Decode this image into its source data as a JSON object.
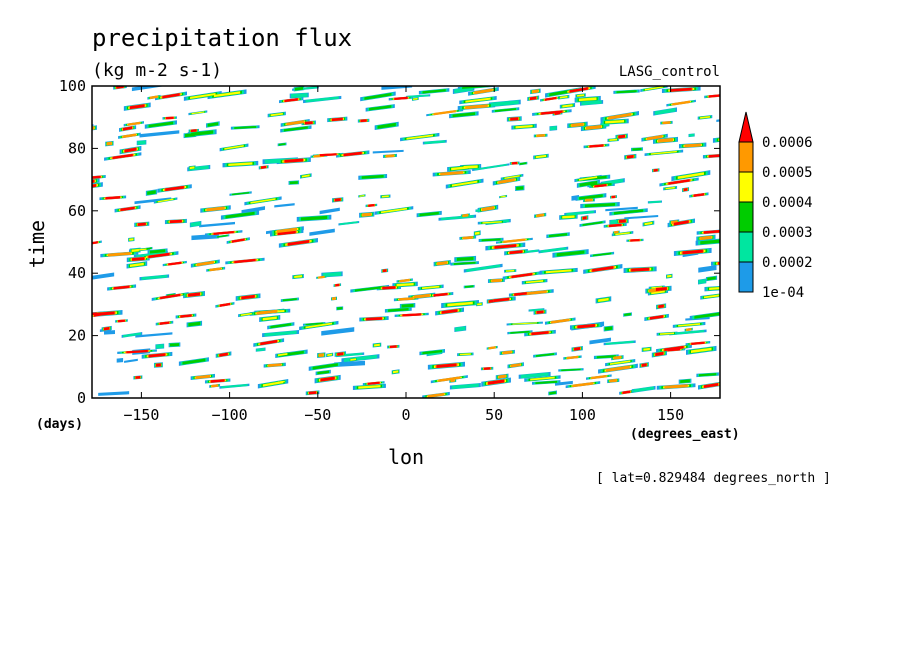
{
  "chart_data": {
    "type": "heatmap",
    "title": "precipitation flux",
    "units": "(kg m-2 s-1)",
    "experiment": "LASG_control",
    "xlabel": "lon",
    "ylabel": "time",
    "x_unit": "(degrees_east)",
    "y_unit": "(days)",
    "xlim": [
      -178,
      178
    ],
    "ylim": [
      0,
      100
    ],
    "x_ticks": [
      -150,
      -100,
      -50,
      0,
      50,
      100,
      150
    ],
    "y_ticks": [
      0,
      20,
      40,
      60,
      80,
      100
    ],
    "x_tick_labels": [
      "−150",
      "−100",
      "−50",
      "0",
      "50",
      "100",
      "150"
    ],
    "y_tick_labels": [
      "0",
      "20",
      "40",
      "60",
      "80",
      "100"
    ],
    "footnote": "[ lat=0.829484 degrees_north ]",
    "colorbar": {
      "levels": [
        0.0001,
        0.0002,
        0.0003,
        0.0004,
        0.0005,
        0.0006
      ],
      "labels": [
        "1e-04",
        "0.0002",
        "0.0003",
        "0.0004",
        "0.0005",
        "0.0006"
      ],
      "colors": [
        "#1e9be8",
        "#00e6a0",
        "#00cc00",
        "#ffff00",
        "#ff9900",
        "#ff0000"
      ],
      "extend": "max"
    }
  }
}
